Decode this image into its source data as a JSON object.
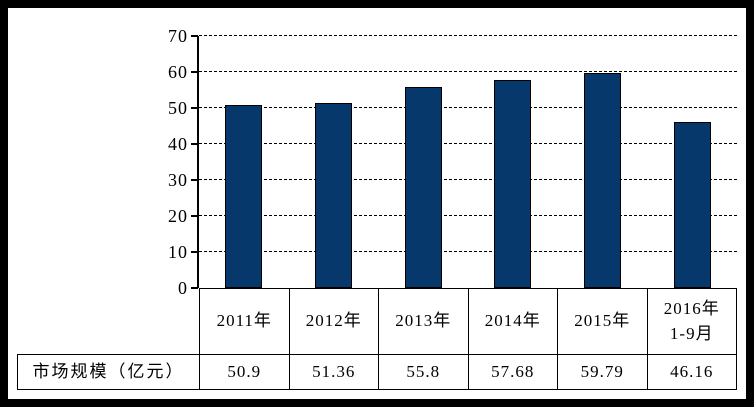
{
  "chart_data": {
    "type": "bar",
    "title": "",
    "categories": [
      "2011年",
      "2012年",
      "2013年",
      "2014年",
      "2015年",
      "2016年\n1-9月"
    ],
    "values": [
      50.9,
      51.36,
      55.8,
      57.68,
      59.79,
      46.16
    ],
    "series": [
      {
        "name": "市场规模（亿元）",
        "values": [
          50.9,
          51.36,
          55.8,
          57.68,
          59.79,
          46.16
        ]
      }
    ],
    "xlabel": "",
    "ylabel": "",
    "ylim": [
      0,
      70
    ],
    "y_ticks": [
      0,
      10,
      20,
      30,
      40,
      50,
      60,
      70
    ],
    "grid": "horizontal-dashed",
    "legend_position": "none",
    "bar_color": "#06386C",
    "bar_border_color": "#000000"
  },
  "table": {
    "row_label": "市场规模（亿元）",
    "column_headers": [
      "2011年",
      "2012年",
      "2013年",
      "2014年",
      "2015年",
      "2016年\n1-9月"
    ],
    "cell_values": [
      "50.9",
      "51.36",
      "55.8",
      "57.68",
      "59.79",
      "46.16"
    ]
  },
  "frame": {
    "border_color": "#000000",
    "background_color": "#FFFFFF",
    "text_color": "#000000"
  }
}
